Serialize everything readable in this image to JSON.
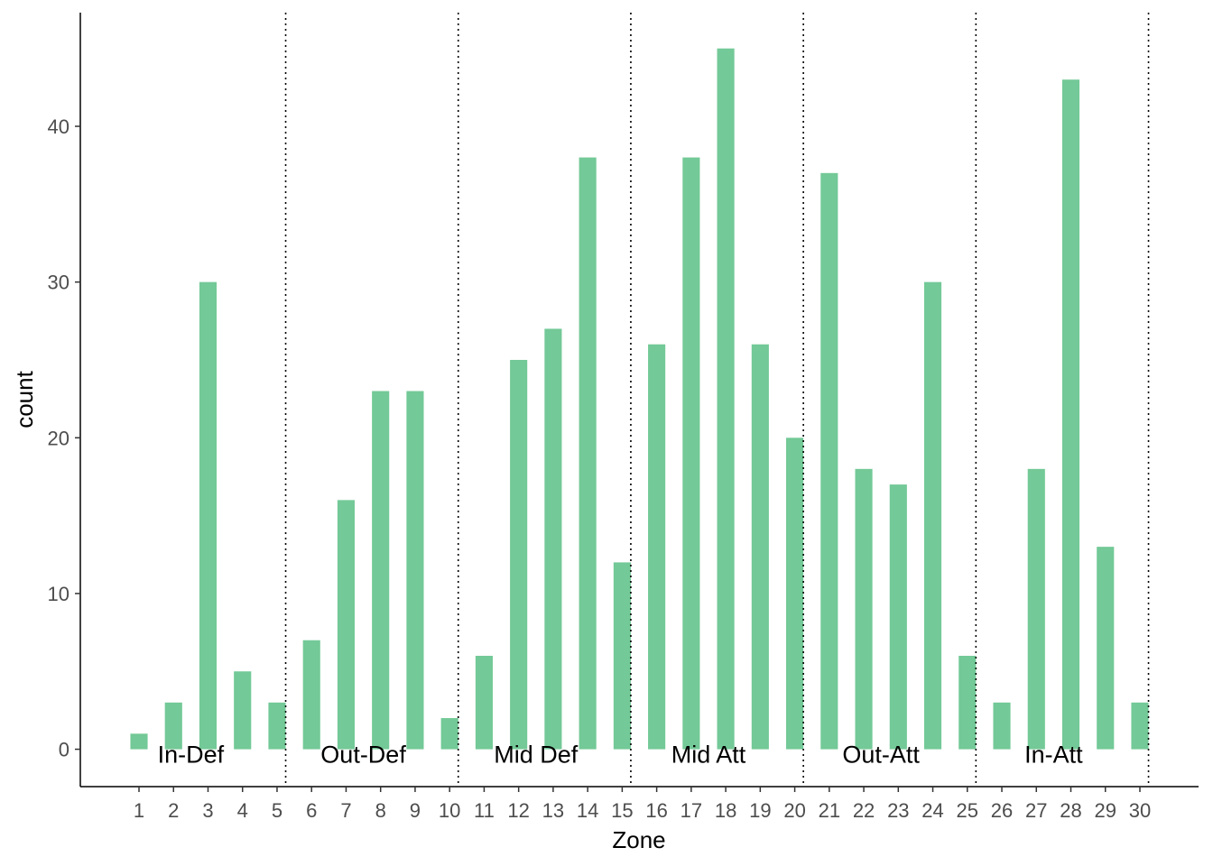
{
  "chart_data": {
    "type": "bar",
    "title": "",
    "xlabel": "Zone",
    "ylabel": "count",
    "categories": [
      "1",
      "2",
      "3",
      "4",
      "5",
      "6",
      "7",
      "8",
      "9",
      "10",
      "11",
      "12",
      "13",
      "14",
      "15",
      "16",
      "17",
      "18",
      "19",
      "20",
      "21",
      "22",
      "23",
      "24",
      "25",
      "26",
      "27",
      "28",
      "29",
      "30"
    ],
    "values": [
      1,
      3,
      30,
      5,
      3,
      7,
      16,
      23,
      23,
      2,
      6,
      25,
      27,
      38,
      12,
      26,
      38,
      45,
      26,
      20,
      37,
      18,
      17,
      30,
      6,
      3,
      18,
      43,
      13,
      3
    ],
    "yticks": [
      0,
      10,
      20,
      30,
      40
    ],
    "ylim": [
      -2.4,
      47.3
    ],
    "xlim": [
      -0.7,
      31.7
    ],
    "bar_width": 0.5,
    "bar_color": "#73c997",
    "grid": false,
    "dividers": [
      5.25,
      10.25,
      15.25,
      20.25,
      25.25,
      30.25
    ],
    "zone_labels": [
      {
        "text": "In-Def",
        "x": 2.5
      },
      {
        "text": "Out-Def",
        "x": 7.5
      },
      {
        "text": "Mid Def",
        "x": 12.5
      },
      {
        "text": "Mid Att",
        "x": 17.5
      },
      {
        "text": "Out-Att",
        "x": 22.5
      },
      {
        "text": "In-Att",
        "x": 27.5
      }
    ]
  }
}
